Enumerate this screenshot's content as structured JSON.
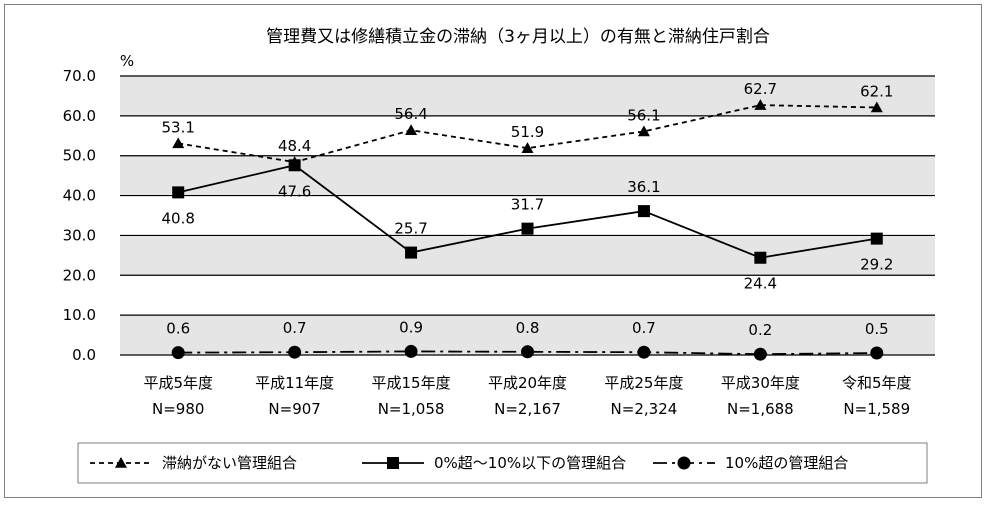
{
  "chart_data": {
    "type": "line",
    "title": "管理費又は修繕積立金の滞納（3ヶ月以上）の有無と滞納住戸割合",
    "yunit": "%",
    "ylim": [
      0,
      70
    ],
    "yticks": [
      "0.0",
      "10.0",
      "20.0",
      "30.0",
      "40.0",
      "50.0",
      "60.0",
      "70.0"
    ],
    "categories": [
      "平成5年度",
      "平成11年度",
      "平成15年度",
      "平成20年度",
      "平成25年度",
      "平成30年度",
      "令和5年度"
    ],
    "sample_sizes": [
      "N=980",
      "N=907",
      "N=1,058",
      "N=2,167",
      "N=2,324",
      "N=1,688",
      "N=1,589"
    ],
    "grid": true,
    "legend_position": "bottom",
    "series": [
      {
        "name": "滞納がない管理組合",
        "values": [
          53.1,
          48.4,
          56.4,
          51.9,
          56.1,
          62.7,
          62.1
        ],
        "labels": [
          "53.1",
          "48.4",
          "56.4",
          "51.9",
          "56.1",
          "62.7",
          "62.1"
        ],
        "line_style": "dashed",
        "marker": "triangle"
      },
      {
        "name": "0%超～10%以下の管理組合",
        "values": [
          40.8,
          47.6,
          25.7,
          31.7,
          36.1,
          24.4,
          29.2
        ],
        "labels": [
          "40.8",
          "47.6",
          "25.7",
          "31.7",
          "36.1",
          "24.4",
          "29.2"
        ],
        "line_style": "solid",
        "marker": "square"
      },
      {
        "name": "10%超の管理組合",
        "values": [
          0.6,
          0.7,
          0.9,
          0.8,
          0.7,
          0.2,
          0.5
        ],
        "labels": [
          "0.6",
          "0.7",
          "0.9",
          "0.8",
          "0.7",
          "0.2",
          "0.5"
        ],
        "line_style": "dash-dot",
        "marker": "circle"
      }
    ]
  }
}
